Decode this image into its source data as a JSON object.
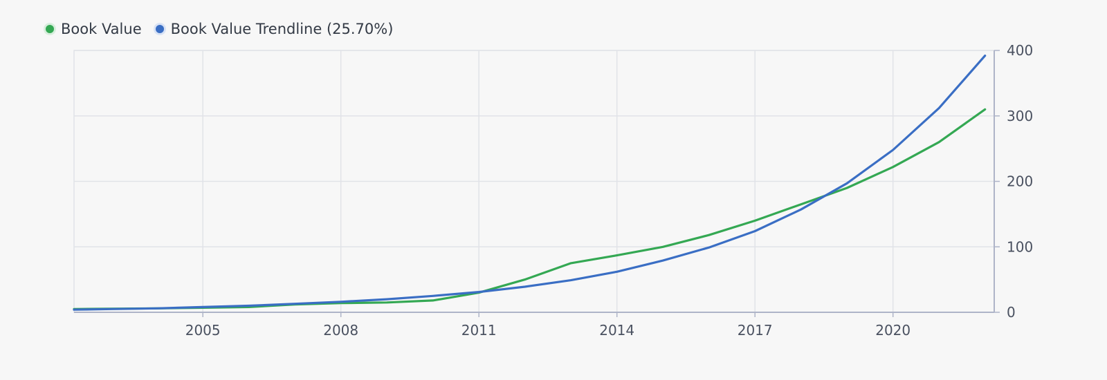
{
  "chart_data": {
    "type": "line",
    "x": [
      2002,
      2003,
      2004,
      2005,
      2006,
      2007,
      2008,
      2009,
      2010,
      2011,
      2012,
      2013,
      2014,
      2015,
      2016,
      2017,
      2018,
      2019,
      2020,
      2021,
      2022
    ],
    "series": [
      {
        "name": "Book Value",
        "color": "#34a853",
        "values": [
          5,
          5.5,
          6,
          7,
          8,
          12,
          14,
          15,
          18,
          30,
          50,
          75,
          87,
          100,
          118,
          140,
          165,
          190,
          222,
          260,
          310
        ]
      },
      {
        "name": "Book Value Trendline (25.70%)",
        "color": "#3a6ec4",
        "values": [
          4,
          5,
          6,
          8,
          10,
          13,
          16,
          20,
          25,
          31,
          39,
          49,
          62,
          79,
          99,
          124,
          157,
          197,
          248,
          312,
          392
        ]
      }
    ],
    "x_ticks": [
      "2005",
      "2008",
      "2011",
      "2014",
      "2017",
      "2020"
    ],
    "y_ticks": [
      "0",
      "100",
      "200",
      "300",
      "400"
    ],
    "xlim": [
      2002.2,
      2022.2
    ],
    "ylim": [
      0,
      400
    ],
    "y_axis_side": "right",
    "grid": true,
    "legend_position": "top-left"
  }
}
